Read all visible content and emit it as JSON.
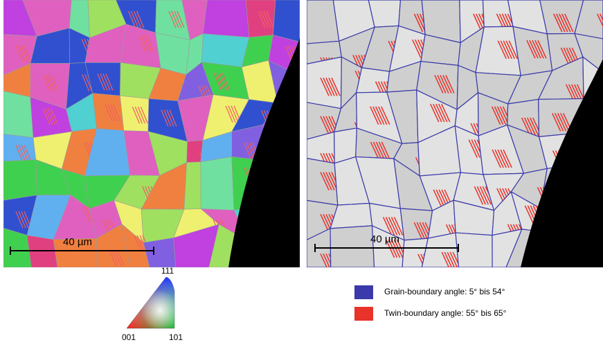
{
  "left_panel": {
    "scale_label": "40 µm"
  },
  "right_panel": {
    "scale_label": "40 µm"
  },
  "color_key": {
    "top": "111",
    "left": "001",
    "right": "101"
  },
  "legend": {
    "items": [
      {
        "label": "Grain-boundary angle: 5° bis 54°",
        "color": "#3a3aaa"
      },
      {
        "label": "Twin-boundary angle: 55° bis 65°",
        "color": "#e8322a"
      }
    ]
  }
}
